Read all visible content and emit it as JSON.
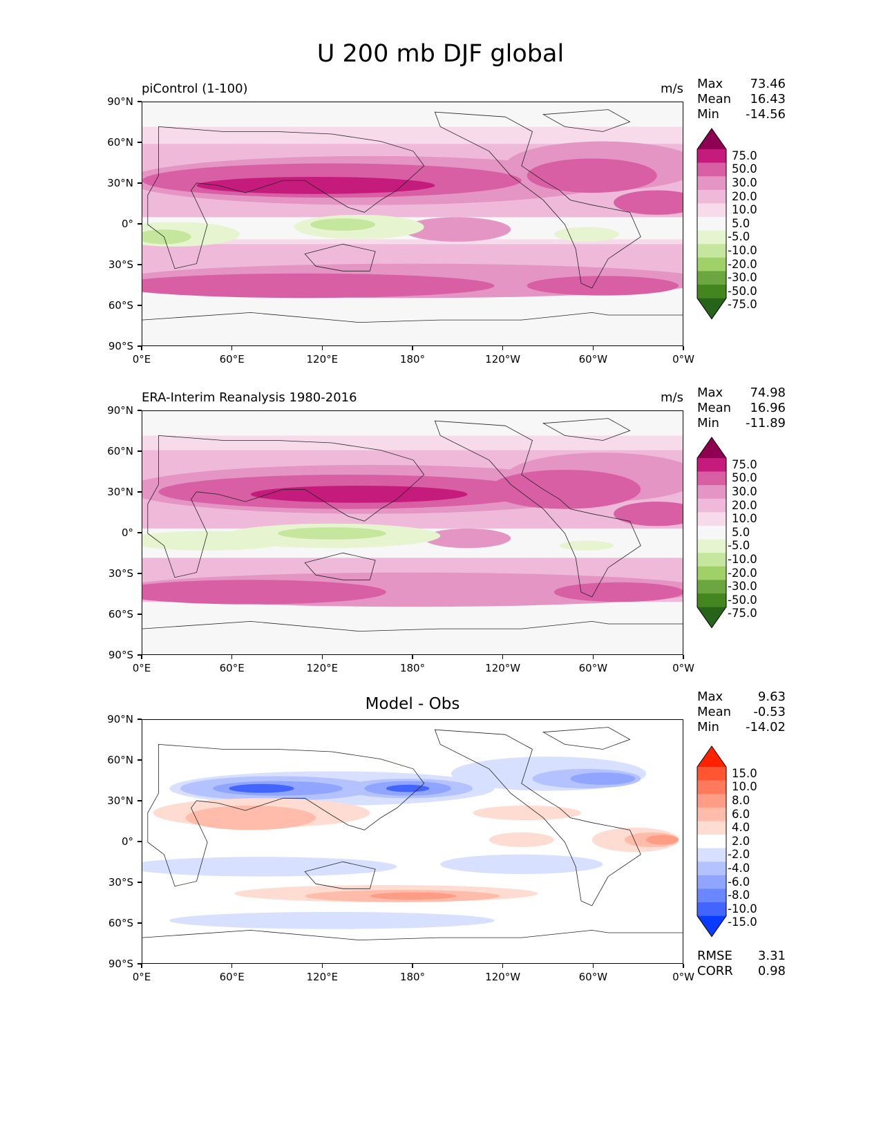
{
  "title": "U 200 mb DJF global",
  "lat_ticks": [
    "90°N",
    "60°N",
    "30°N",
    "0°",
    "30°S",
    "60°S",
    "90°S"
  ],
  "lon_ticks": [
    "0°E",
    "60°E",
    "120°E",
    "180°",
    "120°W",
    "60°W",
    "0°W"
  ],
  "panels": [
    {
      "id": "model",
      "left_title": "piControl (1-100)",
      "center_title": "",
      "units": "m/s",
      "stats": [
        {
          "label": "Max",
          "value": "73.46"
        },
        {
          "label": "Mean",
          "value": "16.43"
        },
        {
          "label": "Min",
          "value": "-14.56"
        }
      ],
      "colorbar": {
        "levels": [
          "75.0",
          "50.0",
          "30.0",
          "20.0",
          "10.0",
          "5.0",
          "-5.0",
          "-10.0",
          "-20.0",
          "-30.0",
          "-50.0",
          "-75.0"
        ],
        "colors": [
          "#8e0152",
          "#c51b7d",
          "#d95fa5",
          "#e495c4",
          "#efbad9",
          "#f7dbeb",
          "#f7f7f7",
          "#e6f5d0",
          "#c4e69d",
          "#9fd168",
          "#6ca640",
          "#43861f",
          "#276419"
        ]
      },
      "extra_stats": []
    },
    {
      "id": "obs",
      "left_title": "ERA-Interim Reanalysis 1980-2016",
      "center_title": "",
      "units": "m/s",
      "stats": [
        {
          "label": "Max",
          "value": "74.98"
        },
        {
          "label": "Mean",
          "value": "16.96"
        },
        {
          "label": "Min",
          "value": "-11.89"
        }
      ],
      "colorbar": {
        "levels": [
          "75.0",
          "50.0",
          "30.0",
          "20.0",
          "10.0",
          "5.0",
          "-5.0",
          "-10.0",
          "-20.0",
          "-30.0",
          "-50.0",
          "-75.0"
        ],
        "colors": [
          "#8e0152",
          "#c51b7d",
          "#d95fa5",
          "#e495c4",
          "#efbad9",
          "#f7dbeb",
          "#f7f7f7",
          "#e6f5d0",
          "#c4e69d",
          "#9fd168",
          "#6ca640",
          "#43861f",
          "#276419"
        ]
      },
      "extra_stats": []
    },
    {
      "id": "diff",
      "left_title": "",
      "center_title": "Model - Obs",
      "units": "",
      "stats": [
        {
          "label": "Max",
          "value": "9.63"
        },
        {
          "label": "Mean",
          "value": "-0.53"
        },
        {
          "label": "Min",
          "value": "-14.02"
        }
      ],
      "colorbar": {
        "levels": [
          "15.0",
          "10.0",
          "8.0",
          "6.0",
          "4.0",
          "2.0",
          "-2.0",
          "-4.0",
          "-6.0",
          "-8.0",
          "-10.0",
          "-15.0"
        ],
        "colors": [
          "#ff2200",
          "#ff5533",
          "#ff7a5c",
          "#ff9c85",
          "#ffbcaa",
          "#ffdcd2",
          "#ffffff",
          "#d8e0ff",
          "#b4c3ff",
          "#8fa5ff",
          "#6b87ff",
          "#4265ff",
          "#0a3cff"
        ]
      },
      "extra_stats": [
        {
          "label": "RMSE",
          "value": "3.31"
        },
        {
          "label": "CORR",
          "value": "0.98"
        }
      ]
    }
  ]
}
